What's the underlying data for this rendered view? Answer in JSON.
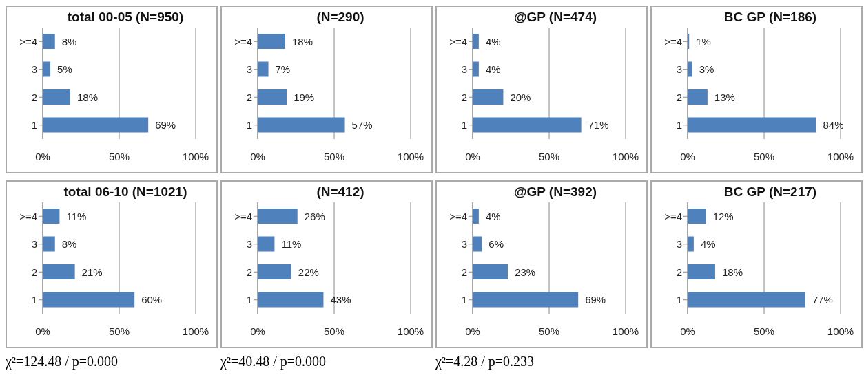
{
  "chart_data": [
    {
      "type": "bar",
      "orientation": "horizontal",
      "title": "total 00-05 (N=950)",
      "categories": [
        ">=4",
        "3",
        "2",
        "1"
      ],
      "values": [
        8,
        5,
        18,
        69
      ],
      "value_labels": [
        "8%",
        "5%",
        "18%",
        "69%"
      ],
      "color": "#4f81bd",
      "xlim": [
        0,
        100
      ],
      "xticks": [
        {
          "value": 0,
          "label": "0%"
        },
        {
          "value": 50,
          "label": "50%"
        },
        {
          "value": 100,
          "label": "100%"
        }
      ],
      "grid": "x",
      "legend": false
    },
    {
      "type": "bar",
      "orientation": "horizontal",
      "title": "(N=290)",
      "categories": [
        ">=4",
        "3",
        "2",
        "1"
      ],
      "values": [
        18,
        7,
        19,
        57
      ],
      "value_labels": [
        "18%",
        "7%",
        "19%",
        "57%"
      ],
      "color": "#4f81bd",
      "xlim": [
        0,
        100
      ],
      "xticks": [
        {
          "value": 0,
          "label": "0%"
        },
        {
          "value": 50,
          "label": "50%"
        },
        {
          "value": 100,
          "label": "100%"
        }
      ],
      "grid": "x",
      "legend": false
    },
    {
      "type": "bar",
      "orientation": "horizontal",
      "title": "@GP (N=474)",
      "categories": [
        ">=4",
        "3",
        "2",
        "1"
      ],
      "values": [
        4,
        4,
        20,
        71
      ],
      "value_labels": [
        "4%",
        "4%",
        "20%",
        "71%"
      ],
      "color": "#4f81bd",
      "xlim": [
        0,
        100
      ],
      "xticks": [
        {
          "value": 0,
          "label": "0%"
        },
        {
          "value": 50,
          "label": "50%"
        },
        {
          "value": 100,
          "label": "100%"
        }
      ],
      "grid": "x",
      "legend": false
    },
    {
      "type": "bar",
      "orientation": "horizontal",
      "title": "BC GP (N=186)",
      "categories": [
        ">=4",
        "3",
        "2",
        "1"
      ],
      "values": [
        1,
        3,
        13,
        84
      ],
      "value_labels": [
        "1%",
        "3%",
        "13%",
        "84%"
      ],
      "color": "#4f81bd",
      "xlim": [
        0,
        100
      ],
      "xticks": [
        {
          "value": 0,
          "label": "0%"
        },
        {
          "value": 50,
          "label": "50%"
        },
        {
          "value": 100,
          "label": "100%"
        }
      ],
      "grid": "x",
      "legend": false
    },
    {
      "type": "bar",
      "orientation": "horizontal",
      "title": "total 06-10 (N=1021)",
      "categories": [
        ">=4",
        "3",
        "2",
        "1"
      ],
      "values": [
        11,
        8,
        21,
        60
      ],
      "value_labels": [
        "11%",
        "8%",
        "21%",
        "60%"
      ],
      "color": "#4f81bd",
      "xlim": [
        0,
        100
      ],
      "xticks": [
        {
          "value": 0,
          "label": "0%"
        },
        {
          "value": 50,
          "label": "50%"
        },
        {
          "value": 100,
          "label": "100%"
        }
      ],
      "grid": "x",
      "legend": false,
      "annotations": [
        "χ²=124.48 / p=0.000"
      ]
    },
    {
      "type": "bar",
      "orientation": "horizontal",
      "title": "(N=412)",
      "categories": [
        ">=4",
        "3",
        "2",
        "1"
      ],
      "values": [
        26,
        11,
        22,
        43
      ],
      "value_labels": [
        "26%",
        "11%",
        "22%",
        "43%"
      ],
      "color": "#4f81bd",
      "xlim": [
        0,
        100
      ],
      "xticks": [
        {
          "value": 0,
          "label": "0%"
        },
        {
          "value": 50,
          "label": "50%"
        },
        {
          "value": 100,
          "label": "100%"
        }
      ],
      "grid": "x",
      "legend": false,
      "annotations": [
        "χ²=40.48 / p=0.000"
      ]
    },
    {
      "type": "bar",
      "orientation": "horizontal",
      "title": "@GP (N=392)",
      "categories": [
        ">=4",
        "3",
        "2",
        "1"
      ],
      "values": [
        4,
        6,
        23,
        69
      ],
      "value_labels": [
        "4%",
        "6%",
        "23%",
        "69%"
      ],
      "color": "#4f81bd",
      "xlim": [
        0,
        100
      ],
      "xticks": [
        {
          "value": 0,
          "label": "0%"
        },
        {
          "value": 50,
          "label": "50%"
        },
        {
          "value": 100,
          "label": "100%"
        }
      ],
      "grid": "x",
      "legend": false,
      "annotations": [
        "χ²=4.28 / p=0.233"
      ]
    },
    {
      "type": "bar",
      "orientation": "horizontal",
      "title": "BC GP (N=217)",
      "categories": [
        ">=4",
        "3",
        "2",
        "1"
      ],
      "values": [
        12,
        4,
        18,
        77
      ],
      "value_labels": [
        "12%",
        "4%",
        "18%",
        "77%"
      ],
      "color": "#4f81bd",
      "xlim": [
        0,
        100
      ],
      "xticks": [
        {
          "value": 0,
          "label": "0%"
        },
        {
          "value": 50,
          "label": "50%"
        },
        {
          "value": 100,
          "label": "100%"
        }
      ],
      "grid": "x",
      "legend": false
    }
  ]
}
